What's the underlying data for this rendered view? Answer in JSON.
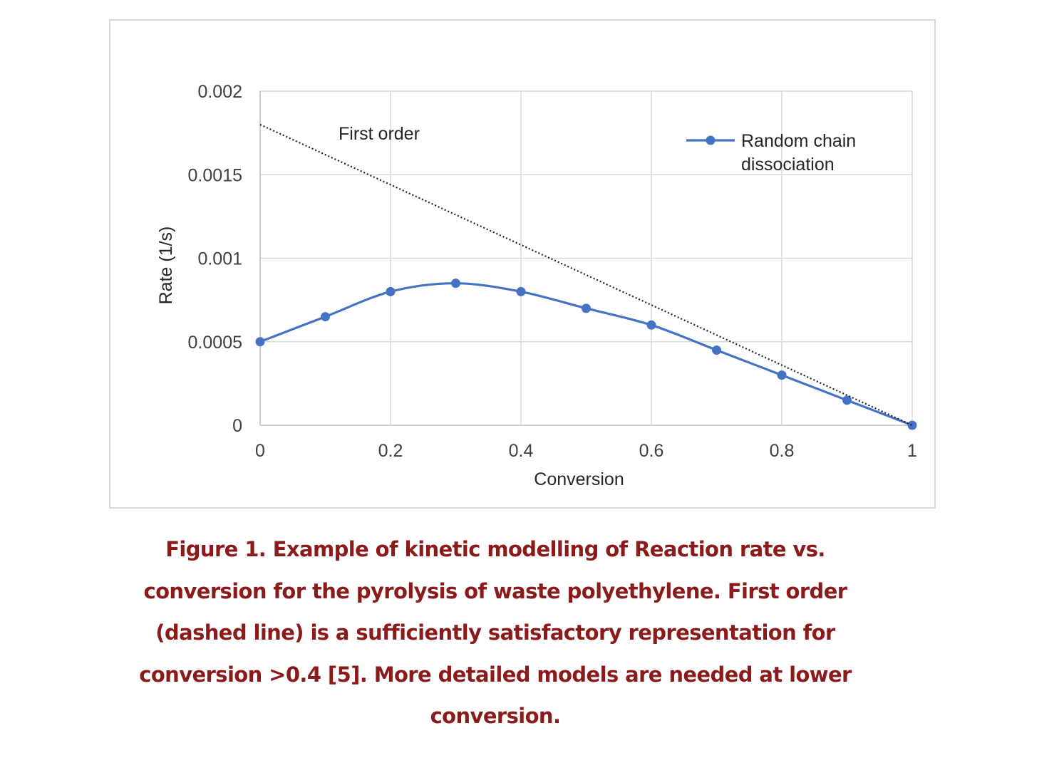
{
  "chart_data": {
    "type": "line",
    "xlabel": "Conversion",
    "ylabel": "Rate (1/s)",
    "xlim": [
      0,
      1
    ],
    "ylim": [
      0,
      0.002
    ],
    "grid": true,
    "legend_position": "top-right",
    "x_ticks": [
      "0",
      "0.2",
      "0.4",
      "0.6",
      "0.8",
      "1"
    ],
    "y_ticks": [
      "0",
      "0.0005",
      "0.001",
      "0.0015",
      "0.002"
    ],
    "series": [
      {
        "name": "Random chain dissociation",
        "legend_lines": [
          "Random chain",
          "dissociation"
        ],
        "color": "#4472c4",
        "marker": "circle",
        "style": "solid",
        "x": [
          0,
          0.1,
          0.2,
          0.3,
          0.4,
          0.5,
          0.6,
          0.7,
          0.8,
          0.9,
          1.0
        ],
        "y": [
          0.0005,
          0.00065,
          0.0008,
          0.00085,
          0.0008,
          0.0007,
          0.0006,
          0.00045,
          0.0003,
          0.00015,
          0
        ]
      },
      {
        "label": "First order",
        "color": "#222222",
        "style": "dotted",
        "x": [
          0,
          1
        ],
        "y": [
          0.0018,
          0
        ]
      }
    ]
  },
  "caption": {
    "lines": [
      "Figure 1. Example of kinetic modelling of Reaction rate vs.",
      "conversion for the pyrolysis of waste polyethylene. First order",
      "(dashed line) is a sufficiently satisfactory representation for",
      "conversion >0.4 [5]. More detailed models are needed at lower",
      "conversion."
    ],
    "color": "#8b1a1a"
  }
}
